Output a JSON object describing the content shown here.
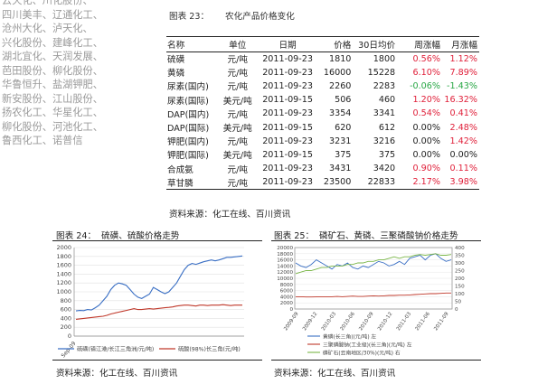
{
  "left_column": {
    "lines": [
      "云天化、川化股份、",
      "四川美丰、辽通化工、",
      "沧州大化、泸天化、",
      "兴化股份、建峰化工、",
      "湖北宜化、天润发展、",
      "芭田股份、柳化股份、",
      "华鲁恒升、盐湖钾肥、",
      "新安股份、江山股份、",
      "扬农化工、华星化工、",
      "柳化股份、河池化工、",
      "鲁西化工、诺普信"
    ]
  },
  "table_section": {
    "label": "图表 23：",
    "title": "农化产品价格变化",
    "headers": [
      "名称",
      "单位",
      "日期",
      "价格",
      "30日均价",
      "周涨幅",
      "月涨幅"
    ],
    "rows": [
      {
        "name": "硫磺",
        "unit": "元/吨",
        "date": "2011-09-23",
        "price": "1810",
        "avg": "1800",
        "week": "0.56%",
        "month": "1.12%",
        "week_color": "red",
        "month_color": "red"
      },
      {
        "name": "黄磷",
        "unit": "元/吨",
        "date": "2011-09-23",
        "price": "16000",
        "avg": "15228",
        "week": "6.10%",
        "month": "7.89%",
        "week_color": "red",
        "month_color": "red"
      },
      {
        "name": "尿素(国内)",
        "unit": "元/吨",
        "date": "2011-09-23",
        "price": "2260",
        "avg": "2283",
        "week": "-0.06%",
        "month": "-1.43%",
        "week_color": "green",
        "month_color": "green"
      },
      {
        "name": "尿素(国际)",
        "unit": "美元/吨",
        "date": "2011-09-15",
        "price": "506",
        "avg": "460",
        "week": "1.20%",
        "month": "16.32%",
        "week_color": "red",
        "month_color": "red"
      },
      {
        "name": "DAP(国内)",
        "unit": "元/吨",
        "date": "2011-09-23",
        "price": "3354",
        "avg": "3341",
        "week": "0.54%",
        "month": "0.41%",
        "week_color": "red",
        "month_color": "red"
      },
      {
        "name": "DAP(国际)",
        "unit": "美元/吨",
        "date": "2011-09-15",
        "price": "620",
        "avg": "612",
        "week": "0.00%",
        "month": "2.48%",
        "week_color": "black",
        "month_color": "red"
      },
      {
        "name": "钾肥(国内)",
        "unit": "元/吨",
        "date": "2011-09-23",
        "price": "3231",
        "avg": "3216",
        "week": "0.00%",
        "month": "1.42%",
        "week_color": "black",
        "month_color": "red"
      },
      {
        "name": "钾肥(国际)",
        "unit": "美元/吨",
        "date": "2011-09-15",
        "price": "375",
        "avg": "375",
        "week": "0.00%",
        "month": "0.00%",
        "week_color": "black",
        "month_color": "black"
      },
      {
        "name": "合成氨",
        "unit": "元/吨",
        "date": "2011-09-23",
        "price": "3431",
        "avg": "3420",
        "week": "0.90%",
        "month": "0.11%",
        "week_color": "red",
        "month_color": "red"
      },
      {
        "name": "草甘膦",
        "unit": "元/吨",
        "date": "2011-09-23",
        "price": "23500",
        "avg": "22833",
        "week": "2.17%",
        "month": "3.98%",
        "week_color": "red",
        "month_color": "red"
      }
    ],
    "source": "资料来源：化工在线、百川资讯"
  },
  "figure24": {
    "label": "图表 24：",
    "title": "硫磺、硫酸价格走势",
    "source": "资料来源：化工在线、百川资讯"
  },
  "figure25": {
    "label": "图表 25：",
    "title": "磷矿石、黄磷、三聚磷酸钠价格走势",
    "source": "资料来源：化工在线、百川资讯"
  },
  "chart_data": [
    {
      "type": "line",
      "ylim": [
        0,
        2000
      ],
      "yticks": [
        "2000",
        "1800",
        "1600",
        "1400",
        "1200",
        "1000",
        "800",
        "600",
        "400",
        "200",
        "0"
      ],
      "xticks": [
        "Sep-09"
      ],
      "series": [
        {
          "name": "硫磺(镇江港/长江三角洲/元/吨)",
          "color": "#3a6fc4",
          "values": [
            570,
            580,
            575,
            600,
            590,
            640,
            700,
            800,
            900,
            1050,
            1150,
            1200,
            1180,
            1150,
            1050,
            950,
            880,
            850,
            900,
            950,
            1100,
            1050,
            1000,
            960,
            1000,
            1100,
            1200,
            1350,
            1500,
            1600,
            1640,
            1620,
            1650,
            1680,
            1700,
            1720,
            1700,
            1720,
            1750,
            1780,
            1780,
            1790,
            1800,
            1810
          ]
        },
        {
          "name": "硫酸(98%)长三角(元/吨)",
          "color": "#c0392b",
          "values": [
            380,
            390,
            400,
            410,
            420,
            430,
            440,
            450,
            470,
            500,
            520,
            540,
            560,
            580,
            600,
            620,
            600,
            600,
            610,
            620,
            610,
            620,
            630,
            640,
            650,
            660,
            680,
            690,
            700,
            700,
            690,
            680,
            700,
            700,
            690,
            700,
            700,
            700,
            710,
            700,
            690,
            700,
            700,
            700
          ]
        }
      ],
      "legend": [
        "硫磺(镇江港/长江三角洲/元/吨)",
        "硫酸(98%)长三角(元/吨)"
      ]
    },
    {
      "type": "line",
      "ylim_left": [
        0,
        20000
      ],
      "ylim_right": [
        0,
        400
      ],
      "yticks_left": [
        "20000",
        "18000",
        "16000",
        "14000",
        "12000",
        "10000",
        "8000",
        "6000",
        "4000",
        "2000",
        "0"
      ],
      "yticks_right": [
        "400",
        "350",
        "300",
        "250",
        "200",
        "150",
        "100",
        "50",
        "0"
      ],
      "xticks": [
        "2009-09",
        "2009-12",
        "2010-03",
        "2010-06",
        "2010-09",
        "2010-12",
        "2011-03",
        "2011-06",
        "2011-09"
      ],
      "series": [
        {
          "name": "黄磷(长三角)(元/吨) 左",
          "color": "#3a6fc4",
          "axis": "left",
          "values": [
            15000,
            14000,
            13500,
            14500,
            16000,
            15000,
            14000,
            13000,
            14500,
            14000,
            15000,
            13500,
            13000,
            14000,
            13500,
            14500,
            15500,
            15000,
            14000,
            14500,
            15500,
            14500,
            16500,
            17000,
            17500,
            16000,
            17500,
            18000,
            16500,
            15500,
            16000
          ]
        },
        {
          "name": "三聚磷酸钠(工业级)(长三角)(元/吨) 左",
          "color": "#c0392b",
          "axis": "left",
          "values": [
            4000,
            4000,
            3900,
            3900,
            3950,
            4000,
            4000,
            4000,
            4100,
            4000,
            4100,
            4200,
            4100,
            4100,
            4200,
            4300,
            4200,
            4300,
            4400,
            4400,
            4500,
            4500,
            4600,
            4700,
            4800,
            4900,
            5000,
            5000,
            5100,
            5200,
            5200
          ]
        },
        {
          "name": "磷矿石(云南地区/30%)(元/吨) 右",
          "color": "#7ab648",
          "axis": "right",
          "values": [
            230,
            240,
            250,
            250,
            260,
            270,
            270,
            280,
            280,
            280,
            290,
            290,
            300,
            300,
            310,
            310,
            320,
            320,
            330,
            340,
            330,
            340,
            340,
            350,
            355,
            350,
            355,
            360,
            350,
            350,
            355
          ]
        }
      ],
      "legend": [
        "黄磷(长三角)(元/吨) 左",
        "三聚磷酸钠(工业级)(长三角)(元/吨) 左",
        "磷矿石(云南地区/30%)(元/吨) 右"
      ]
    }
  ]
}
